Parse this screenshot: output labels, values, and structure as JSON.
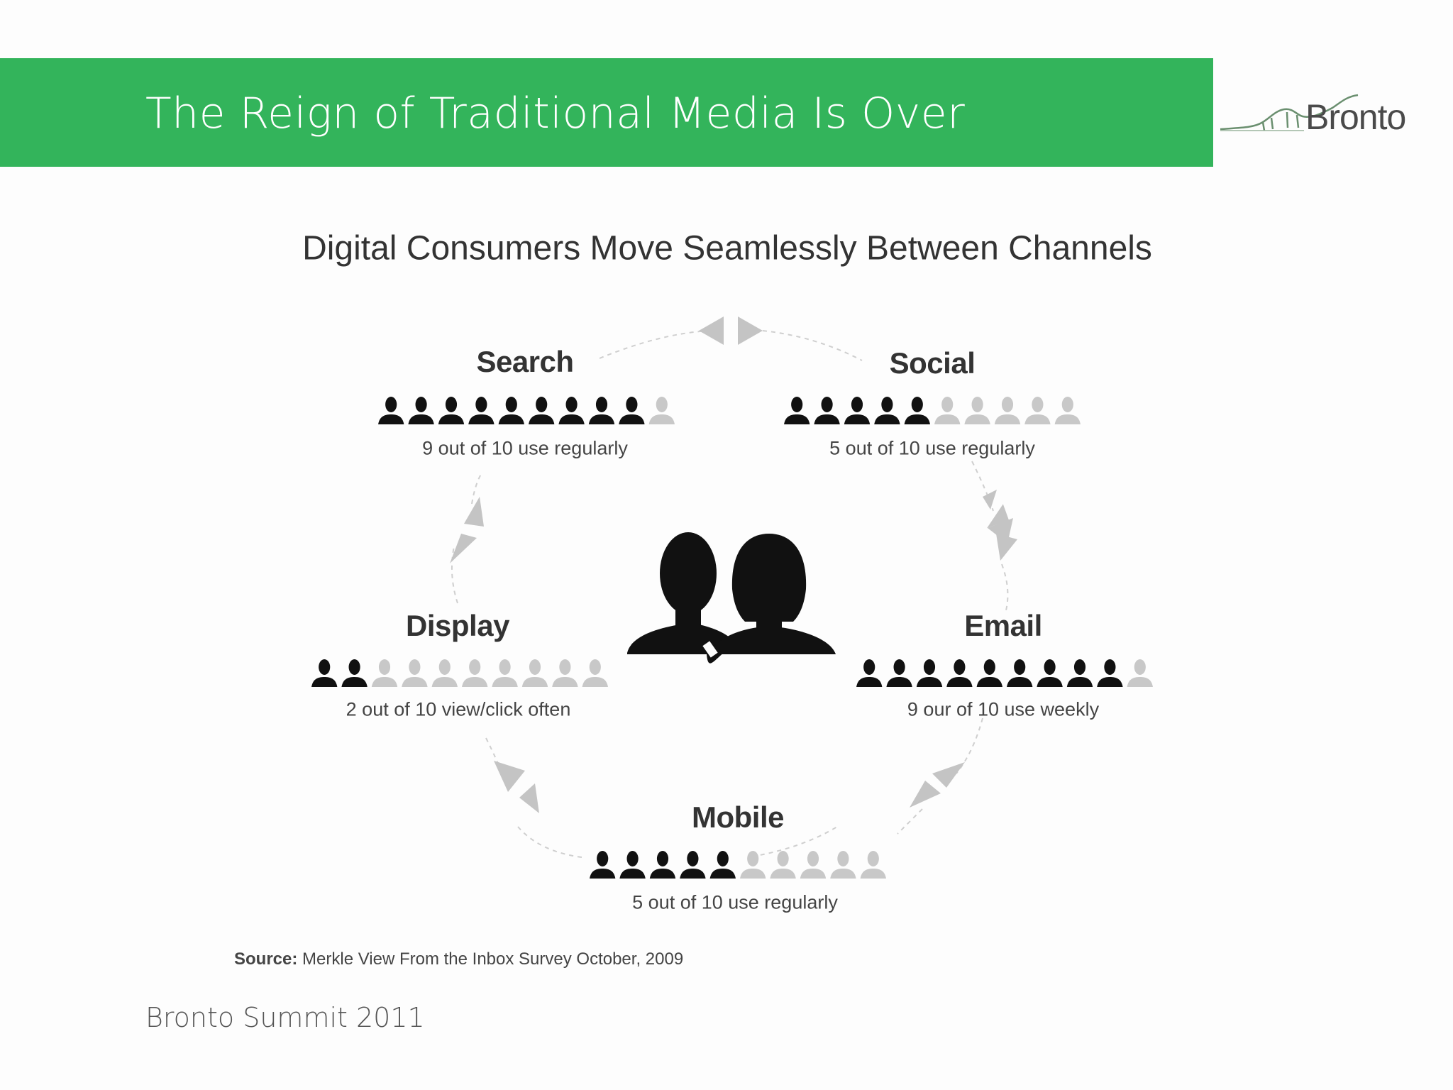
{
  "header": {
    "title": "The Reign of Traditional Media Is Over",
    "logo_text": "Bronto",
    "banner_color": "#33b45b"
  },
  "diagram": {
    "title": "Digital Consumers Move Seamlessly Between Channels",
    "center_icon": "two-people-icon",
    "channels": [
      {
        "name": "Search",
        "stat": "9 out of 10 use regularly",
        "filled": 9,
        "total": 10
      },
      {
        "name": "Social",
        "stat": "5 out of 10 use regularly",
        "filled": 5,
        "total": 10
      },
      {
        "name": "Email",
        "stat": "9 our of 10 use weekly",
        "filled": 9,
        "total": 10
      },
      {
        "name": "Mobile",
        "stat": "5 out of 10 use regularly",
        "filled": 5,
        "total": 10
      },
      {
        "name": "Display",
        "stat": "2 out of 10 view/click often",
        "filled": 2,
        "total": 10
      }
    ],
    "colors": {
      "filled": "#111111",
      "empty": "#c8c8c8",
      "arrow": "#c4c4c4"
    }
  },
  "source": {
    "label": "Source:",
    "text": "Merkle View From the Inbox Survey October, 2009"
  },
  "footer": {
    "text": "Bronto Summit 2011"
  }
}
